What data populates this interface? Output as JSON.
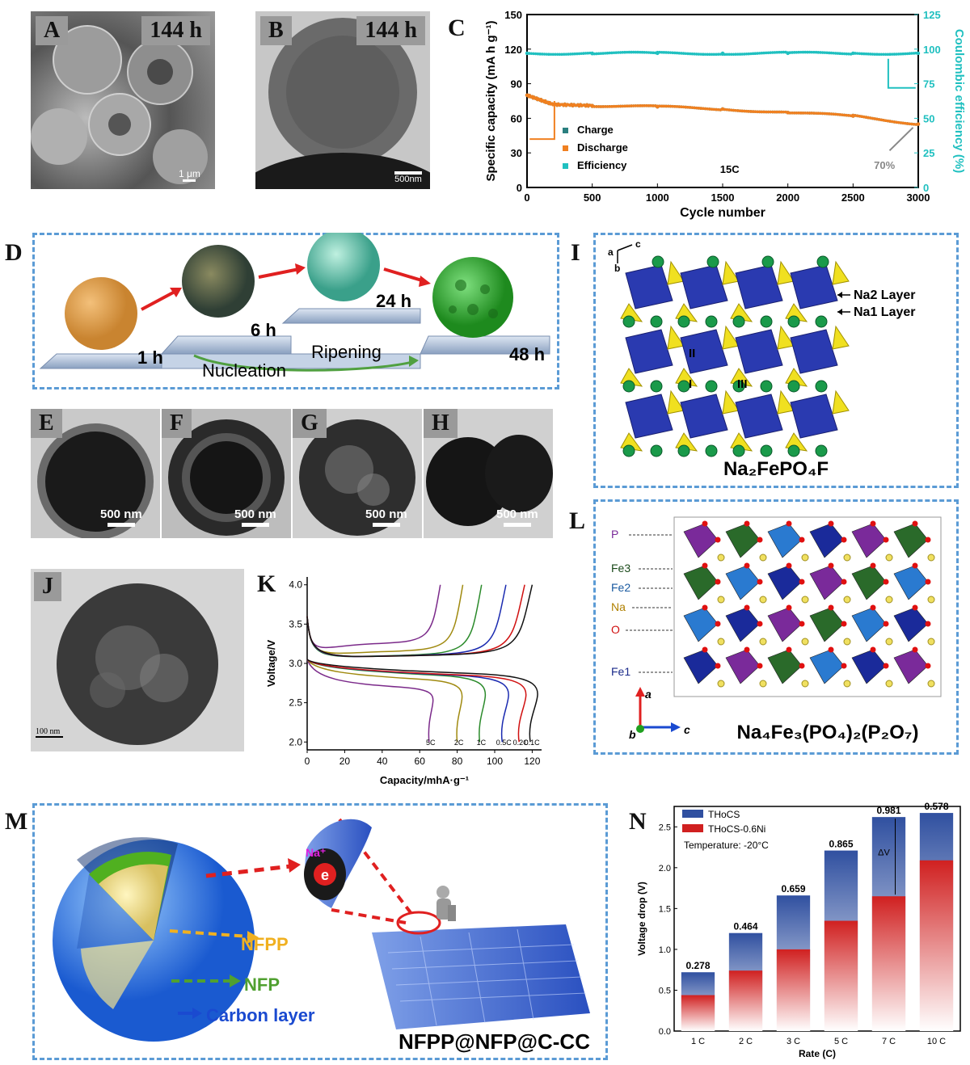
{
  "panels": {
    "A": {
      "label": "A",
      "time": "144 h",
      "scalebar": "1 μm"
    },
    "B": {
      "label": "B",
      "time": "144 h",
      "scalebar": "500nm"
    },
    "C": {
      "label": "C"
    },
    "D": {
      "label": "D",
      "steps": [
        "1 h",
        "6 h",
        "24 h",
        "48 h"
      ],
      "nucleation": "Nucleation",
      "ripening": "Ripening"
    },
    "E": {
      "label": "E",
      "scalebar": "500 nm"
    },
    "F": {
      "label": "F",
      "scalebar": "500 nm"
    },
    "G": {
      "label": "G",
      "scalebar": "500 nm"
    },
    "H": {
      "label": "H",
      "scalebar": "500 nm"
    },
    "I": {
      "label": "I",
      "axes": {
        "a": "a",
        "b": "b",
        "c": "c"
      },
      "na2": "Na2 Layer",
      "na1": "Na1 Layer",
      "sites": [
        "II",
        "I",
        "III"
      ],
      "formula": "Na₂FePO₄F"
    },
    "J": {
      "label": "J",
      "scalebar": "100 nm"
    },
    "K": {
      "label": "K"
    },
    "L": {
      "label": "L",
      "atoms": [
        "P",
        "Fe3",
        "Fe2",
        "Na",
        "O",
        "Fe1"
      ],
      "axes": {
        "a": "a",
        "b": "b",
        "c": "c"
      },
      "formula": "Na₄Fe₃(PO₄)₂(P₂O₇)"
    },
    "M": {
      "label": "M",
      "na_label": "Na⁺",
      "e_label": "e",
      "nfpp": "NFPP",
      "nfp": "NFP",
      "carbon": "Carbon layer",
      "composite": "NFPP@NFP@C-CC"
    },
    "N": {
      "label": "N"
    }
  },
  "chart_data": [
    {
      "panel": "C",
      "type": "scatter",
      "xlabel": "Cycle number",
      "ylabel": "Specific capacity (mA h g⁻¹)",
      "y2label": "Coulombic efficiency (%)",
      "xlim": [
        0,
        3000
      ],
      "ylim": [
        0,
        150
      ],
      "y2lim": [
        0,
        125
      ],
      "xticks": [
        0,
        500,
        1000,
        1500,
        2000,
        2500,
        3000
      ],
      "yticks": [
        0,
        30,
        60,
        90,
        120,
        150
      ],
      "y2ticks": [
        0,
        25,
        50,
        75,
        100,
        125
      ],
      "colors": {
        "Charge": "#2a7f7f",
        "Discharge": "#f08020",
        "Efficiency": "#20c0c0"
      },
      "series": [
        {
          "name": "Charge",
          "x": [
            0,
            200,
            500,
            1000,
            1500,
            2000,
            2500,
            3000
          ],
          "y": [
            80,
            72,
            71,
            70,
            68,
            65,
            62,
            55
          ]
        },
        {
          "name": "Discharge",
          "x": [
            0,
            200,
            500,
            1000,
            1500,
            2000,
            2500,
            3000
          ],
          "y": [
            80,
            72,
            71,
            70,
            68,
            65,
            62,
            55
          ]
        },
        {
          "name": "Efficiency",
          "axis": "right",
          "x": [
            0,
            500,
            1000,
            1500,
            2000,
            2500,
            3000
          ],
          "y": [
            97,
            97,
            97,
            97,
            97,
            97,
            97
          ]
        }
      ],
      "annotations": [
        "15C",
        "70%"
      ]
    },
    {
      "panel": "K",
      "type": "line",
      "xlabel": "Capacity/mhA·g⁻¹",
      "ylabel": "Voltage/V",
      "xlim": [
        0,
        125
      ],
      "ylim": [
        1.9,
        4.1
      ],
      "xticks": [
        0,
        20,
        40,
        60,
        80,
        100,
        120
      ],
      "yticks": [
        2.0,
        2.5,
        3.0,
        3.5,
        4.0
      ],
      "series": [
        {
          "name": "5C",
          "color": "#7b2a8a",
          "charge_cap": 71,
          "discharge_cap": 65,
          "plateau_c": 3.25,
          "plateau_d": 2.75
        },
        {
          "name": "2C",
          "color": "#a08a10",
          "charge_cap": 83,
          "discharge_cap": 80,
          "plateau_c": 3.15,
          "plateau_d": 2.85
        },
        {
          "name": "1C",
          "color": "#2a8a2a",
          "charge_cap": 93,
          "discharge_cap": 92,
          "plateau_c": 3.1,
          "plateau_d": 2.9
        },
        {
          "name": "0.5C",
          "color": "#1a2ab0",
          "charge_cap": 106,
          "discharge_cap": 104,
          "plateau_c": 3.1,
          "plateau_d": 2.9
        },
        {
          "name": "0.2C",
          "color": "#d01010",
          "charge_cap": 116,
          "discharge_cap": 113,
          "plateau_c": 3.1,
          "plateau_d": 2.9
        },
        {
          "name": "0.1C",
          "color": "#111111",
          "charge_cap": 120,
          "discharge_cap": 119,
          "plateau_c": 3.1,
          "plateau_d": 2.92
        }
      ]
    },
    {
      "panel": "N",
      "type": "bar",
      "xlabel": "Rate (C)",
      "ylabel": "Voltage drop (V)",
      "ylim": [
        0,
        2.75
      ],
      "yticks": [
        0.0,
        0.5,
        1.0,
        1.5,
        2.0,
        2.5
      ],
      "categories": [
        "1 C",
        "2 C",
        "3 C",
        "5 C",
        "7 C",
        "10 C"
      ],
      "series": [
        {
          "name": "THoCS",
          "color": "#3050a0",
          "values": [
            0.72,
            1.2,
            1.66,
            2.21,
            2.62,
            2.67
          ]
        },
        {
          "name": "THoCS-0.6Ni",
          "color": "#d02020",
          "values": [
            0.44,
            0.74,
            1.0,
            1.35,
            1.65,
            2.09
          ]
        }
      ],
      "data_labels": [
        "0.278",
        "0.464",
        "0.659",
        "0.865",
        "0.981",
        "0.578"
      ],
      "legend_note": "Temperature: -20°C",
      "delta_label": "ΔV"
    }
  ]
}
